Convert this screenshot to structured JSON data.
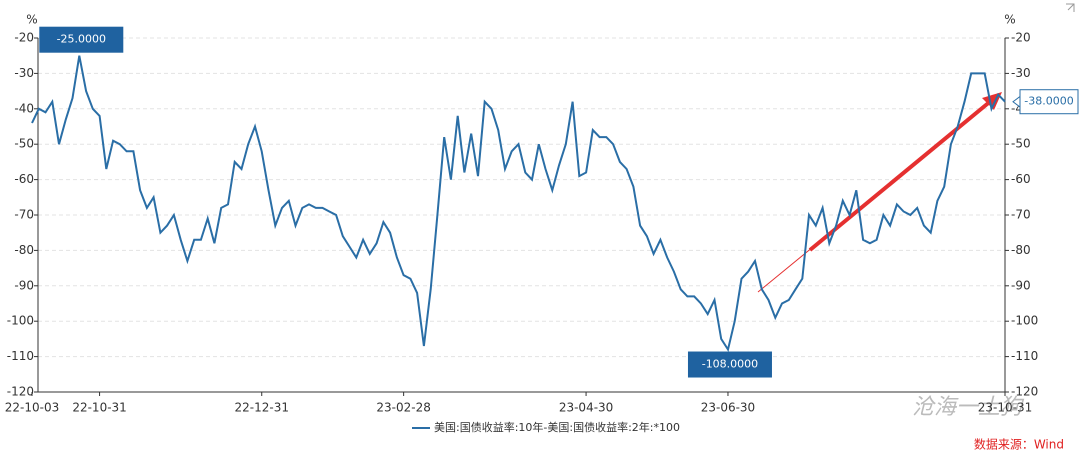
{
  "chart_data": {
    "type": "line",
    "y_unit": "%",
    "y2_unit": "%",
    "categories": [
      "22-10-03",
      null,
      null,
      null,
      null,
      null,
      null,
      null,
      null,
      null,
      "22-10-31",
      null,
      null,
      null,
      null,
      null,
      null,
      null,
      null,
      null,
      null,
      null,
      null,
      null,
      null,
      null,
      null,
      null,
      null,
      null,
      null,
      null,
      null,
      null,
      "22-12-31",
      null,
      null,
      null,
      null,
      null,
      null,
      null,
      null,
      null,
      null,
      null,
      null,
      null,
      null,
      null,
      null,
      null,
      null,
      null,
      null,
      "23-02-28",
      null,
      null,
      null,
      null,
      null,
      null,
      null,
      null,
      null,
      null,
      null,
      null,
      null,
      null,
      null,
      null,
      null,
      null,
      null,
      null,
      null,
      null,
      null,
      null,
      null,
      null,
      "23-04-30",
      null,
      null,
      null,
      null,
      null,
      null,
      null,
      null,
      null,
      null,
      null,
      null,
      null,
      null,
      null,
      null,
      null,
      null,
      null,
      null,
      "23-06-30",
      null,
      null,
      null,
      null,
      null,
      null,
      null,
      null,
      null,
      null,
      null,
      null,
      null,
      null,
      null,
      null,
      null,
      null,
      null,
      null,
      null,
      null,
      null,
      null,
      null,
      null,
      null,
      null,
      null,
      null,
      null,
      null,
      null,
      null,
      null,
      null,
      null,
      null,
      null,
      null,
      "23-10-31"
    ],
    "series": [
      {
        "name": "美国:国债收益率:10年-美国:国债收益率:2年:*100",
        "color": "#2a6ea6",
        "values": [
          -44,
          -40,
          -41,
          -38,
          -50,
          -43,
          -37,
          -25,
          -35,
          -40,
          -42,
          -57,
          -49,
          -50,
          -52,
          -52,
          -63,
          -68,
          -65,
          -75,
          -73,
          -70,
          -77,
          -83,
          -77,
          -77,
          -71,
          -78,
          -68,
          -67,
          -55,
          -57,
          -50,
          -45,
          -52,
          -63,
          -73,
          -68,
          -66,
          -73,
          -68,
          -67,
          -68,
          -68,
          -69,
          -70,
          -76,
          -79,
          -82,
          -77,
          -81,
          -78,
          -72,
          -75,
          -82,
          -87,
          -88,
          -92,
          -107,
          -91,
          -70,
          -48,
          -60,
          -42,
          -58,
          -47,
          -59,
          -38,
          -40,
          -46,
          -57,
          -52,
          -50,
          -58,
          -60,
          -50,
          -57,
          -63,
          -56,
          -50,
          -38,
          -59,
          -58,
          -46,
          -48,
          -48,
          -50,
          -55,
          -57,
          -62,
          -73,
          -76,
          -81,
          -77,
          -82,
          -86,
          -91,
          -93,
          -93,
          -95,
          -98,
          -94,
          -105,
          -108,
          -100,
          -88,
          -86,
          -83,
          -91,
          -94,
          -99,
          -95,
          -94,
          -91,
          -88,
          -70,
          -73,
          -68,
          -78,
          -73,
          -66,
          -70,
          -63,
          -77,
          -78,
          -77,
          -70,
          -73,
          -67,
          -69,
          -70,
          -68,
          -73,
          -75,
          -66,
          -62,
          -50,
          -45,
          -38,
          -30,
          -30,
          -30,
          -40,
          -36,
          -38
        ]
      }
    ],
    "ylim": [
      -120,
      -20
    ],
    "yticks": [
      -120,
      -110,
      -100,
      -90,
      -80,
      -70,
      -60,
      -50,
      -40,
      -30,
      -20
    ],
    "y2lim": [
      -120,
      -20
    ],
    "y2ticks": [
      -120,
      -110,
      -100,
      -90,
      -80,
      -70,
      -60,
      -50,
      -40,
      -30,
      -20
    ],
    "grid": true,
    "annotations": [
      {
        "value": -25,
        "label": "-25.0000"
      },
      {
        "value": -108,
        "label": "-108.0000"
      },
      {
        "value": -38,
        "label": "-38.0000"
      }
    ],
    "source": "数据来源：Wind",
    "watermark": "沧海一土狗"
  }
}
